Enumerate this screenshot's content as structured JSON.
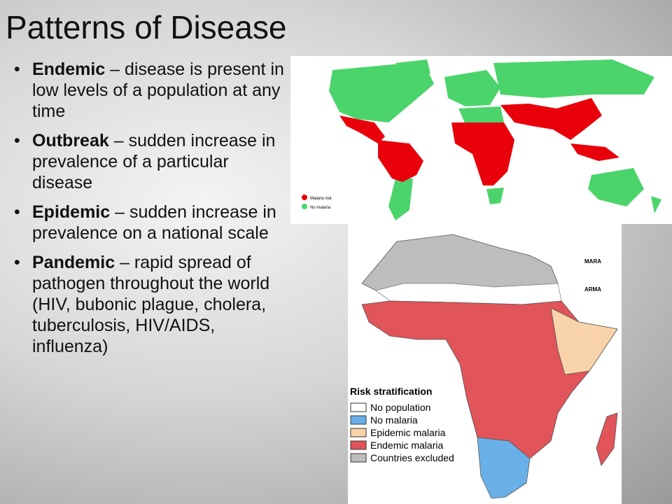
{
  "title": "Patterns of Disease",
  "bullets": [
    {
      "term": "Endemic",
      "text": "– disease is present in low levels of a population at any time"
    },
    {
      "term": "Outbreak",
      "text": "– sudden increase in prevalence of a particular disease"
    },
    {
      "term": "Epidemic",
      "text": "– sudden increase in prevalence on a national scale"
    },
    {
      "term": "Pandemic",
      "text": "– rapid spread of pathogen throughout the world (HIV, bubonic plague, cholera, tuberculosis, HIV/AIDS, influenza)"
    }
  ],
  "world_map": {
    "legend": [
      {
        "label": "Malaria risk",
        "color": "#e8000b"
      },
      {
        "label": "No malaria",
        "color": "#4cd46c"
      }
    ]
  },
  "africa_map": {
    "logos": [
      "MARA",
      "ARMA"
    ],
    "legend_title": "Risk stratification",
    "legend": [
      {
        "label": "No population",
        "color": "#ffffff"
      },
      {
        "label": "No malaria",
        "color": "#6ab0e8"
      },
      {
        "label": "Epidemic malaria",
        "color": "#f9d3a9"
      },
      {
        "label": "Endemic malaria",
        "color": "#e0545a"
      },
      {
        "label": "Countries excluded",
        "color": "#bdbdbd"
      }
    ]
  }
}
